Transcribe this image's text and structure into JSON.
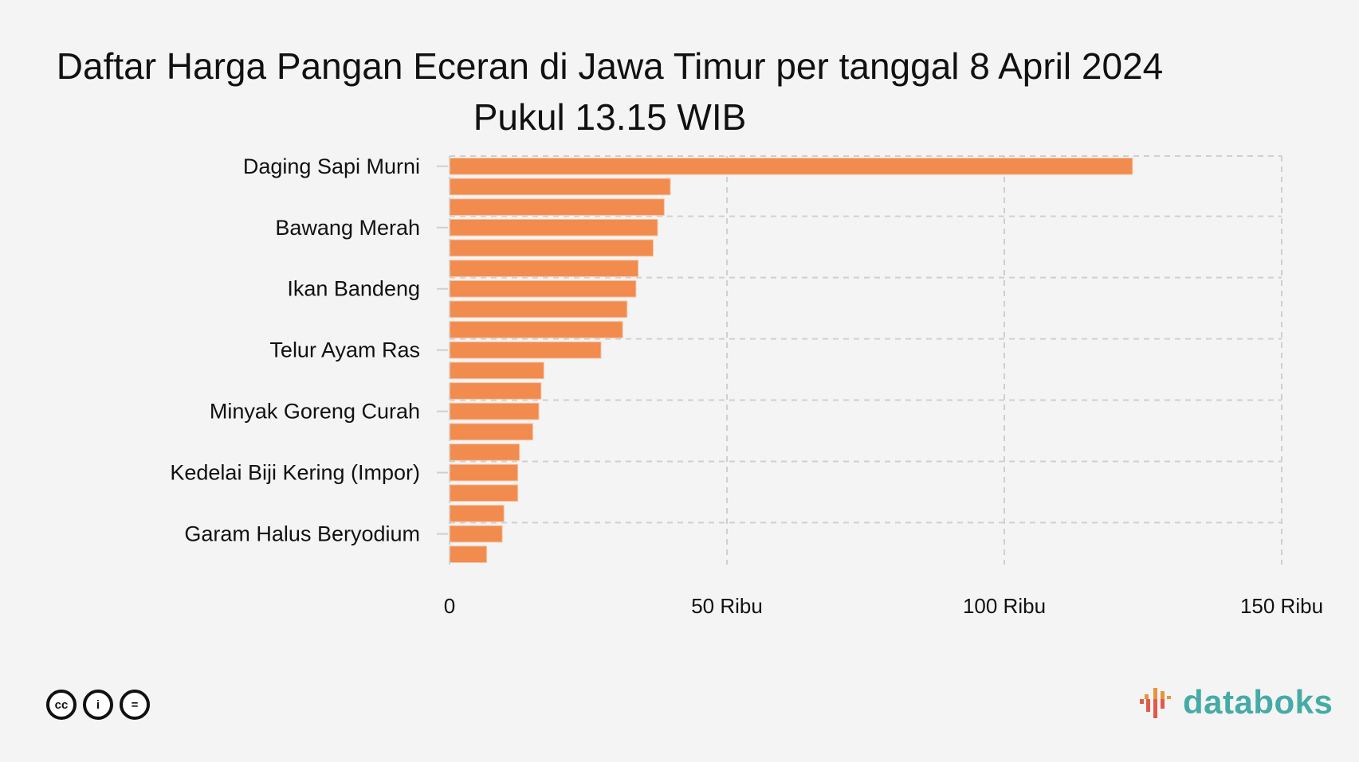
{
  "chart_data": {
    "type": "bar",
    "orientation": "horizontal",
    "title": "Daftar Harga Pangan Eceran di Jawa Timur per tanggal 8 April 2024",
    "subtitle": "Pukul 13.15 WIB",
    "categories": [
      "Daging Sapi Murni",
      "",
      "",
      "Bawang Merah",
      "",
      "",
      "Ikan Bandeng",
      "",
      "",
      "Telur Ayam Ras",
      "",
      "",
      "Minyak Goreng Curah",
      "",
      "",
      "Kedelai Biji Kering (Impor)",
      "",
      "",
      "Garam Halus Beryodium",
      ""
    ],
    "values": [
      123100,
      39800,
      38700,
      37500,
      36700,
      34000,
      33600,
      32000,
      31200,
      27300,
      17000,
      16500,
      16100,
      15000,
      12600,
      12300,
      12300,
      9800,
      9500,
      6700
    ],
    "xlim": [
      0,
      150000
    ],
    "xticks": [
      0,
      50000,
      100000,
      150000
    ],
    "xtick_labels": [
      "0",
      "50 Ribu",
      "100 Ribu",
      "150 Ribu"
    ],
    "grid": true,
    "bar_color": "#f28b4e"
  },
  "footer": {
    "license_icons": [
      "cc",
      "by",
      "nd"
    ],
    "license_labels": [
      "cc",
      "i",
      "="
    ],
    "brand": "databoks",
    "brand_color": "#45aba6"
  }
}
